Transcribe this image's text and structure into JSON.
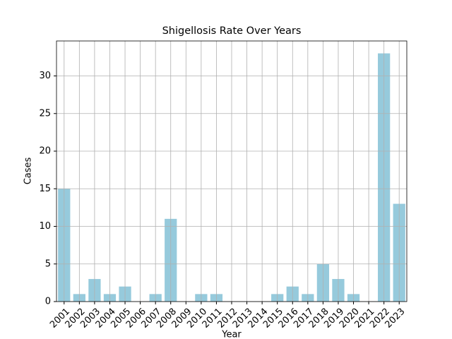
{
  "chart_data": {
    "type": "bar",
    "title": "Shigellosis Rate Over Years",
    "xlabel": "Year",
    "ylabel": "Cases",
    "categories": [
      "2001",
      "2002",
      "2003",
      "2004",
      "2005",
      "2006",
      "2007",
      "2008",
      "2009",
      "2010",
      "2011",
      "2012",
      "2013",
      "2014",
      "2015",
      "2016",
      "2017",
      "2018",
      "2019",
      "2020",
      "2021",
      "2022",
      "2023"
    ],
    "values": [
      15,
      1,
      3,
      1,
      2,
      0,
      1,
      11,
      0,
      1,
      1,
      0,
      0,
      0,
      1,
      2,
      1,
      5,
      3,
      1,
      0,
      33,
      13
    ],
    "color": "#96cadc",
    "ylim": [
      0,
      34.65
    ],
    "yticks": [
      0,
      5,
      10,
      15,
      20,
      25,
      30
    ],
    "grid": true
  }
}
